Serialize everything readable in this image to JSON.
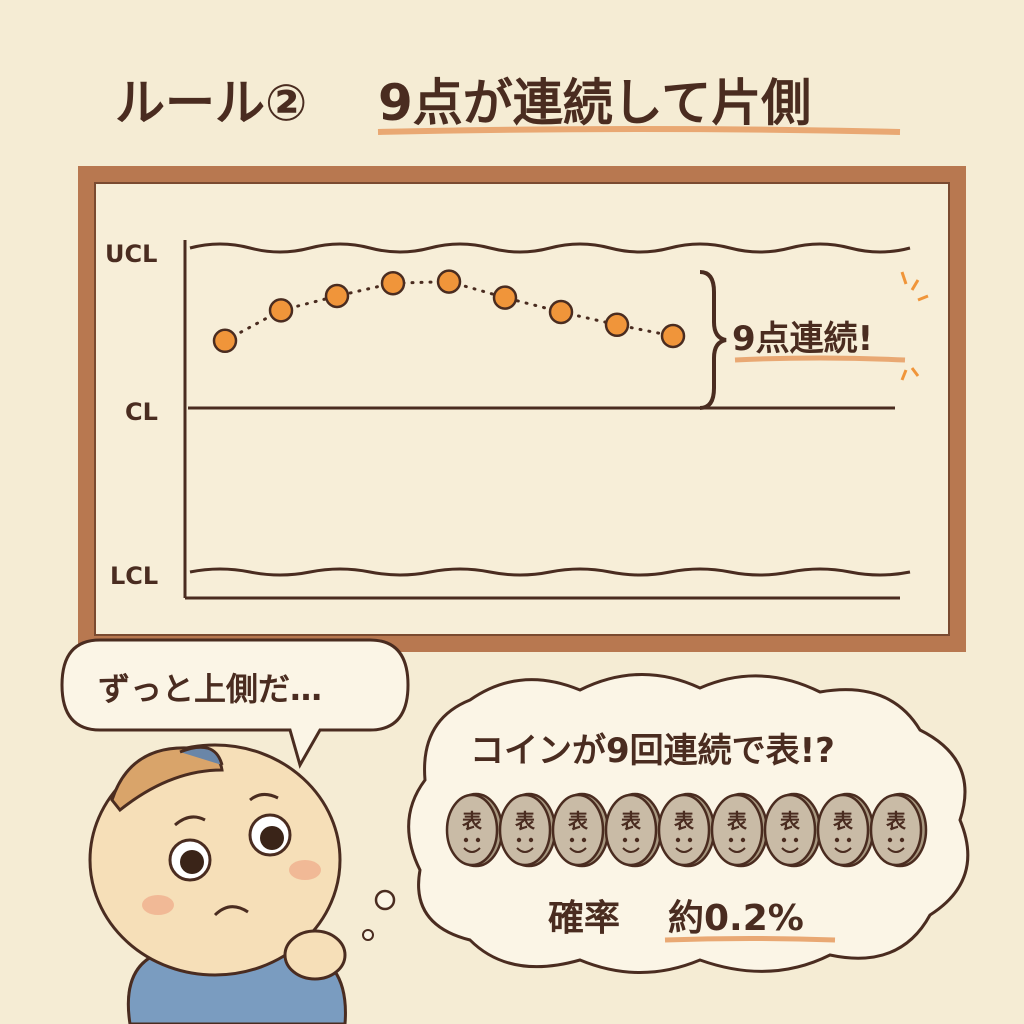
{
  "title": {
    "rule": "ルール②",
    "text": "9点が連続して片側"
  },
  "chart": {
    "ucl_label": "UCL",
    "cl_label": "CL",
    "lcl_label": "LCL",
    "callout": "9点連続!",
    "points": [
      0.42,
      0.61,
      0.7,
      0.78,
      0.79,
      0.69,
      0.6,
      0.52,
      0.45
    ]
  },
  "speech": {
    "text": "ずっと上側だ…"
  },
  "thought": {
    "headline": "コインが9回連続で表!?",
    "coin_label": "表",
    "coin_count": 9,
    "probability_label": "確率",
    "probability_value": "約0.2%"
  },
  "colors": {
    "background": "#f5ecd4",
    "frame": "#b87850",
    "ink": "#4a2c20",
    "accent": "#f0953a",
    "coin": "#c9bba6"
  }
}
